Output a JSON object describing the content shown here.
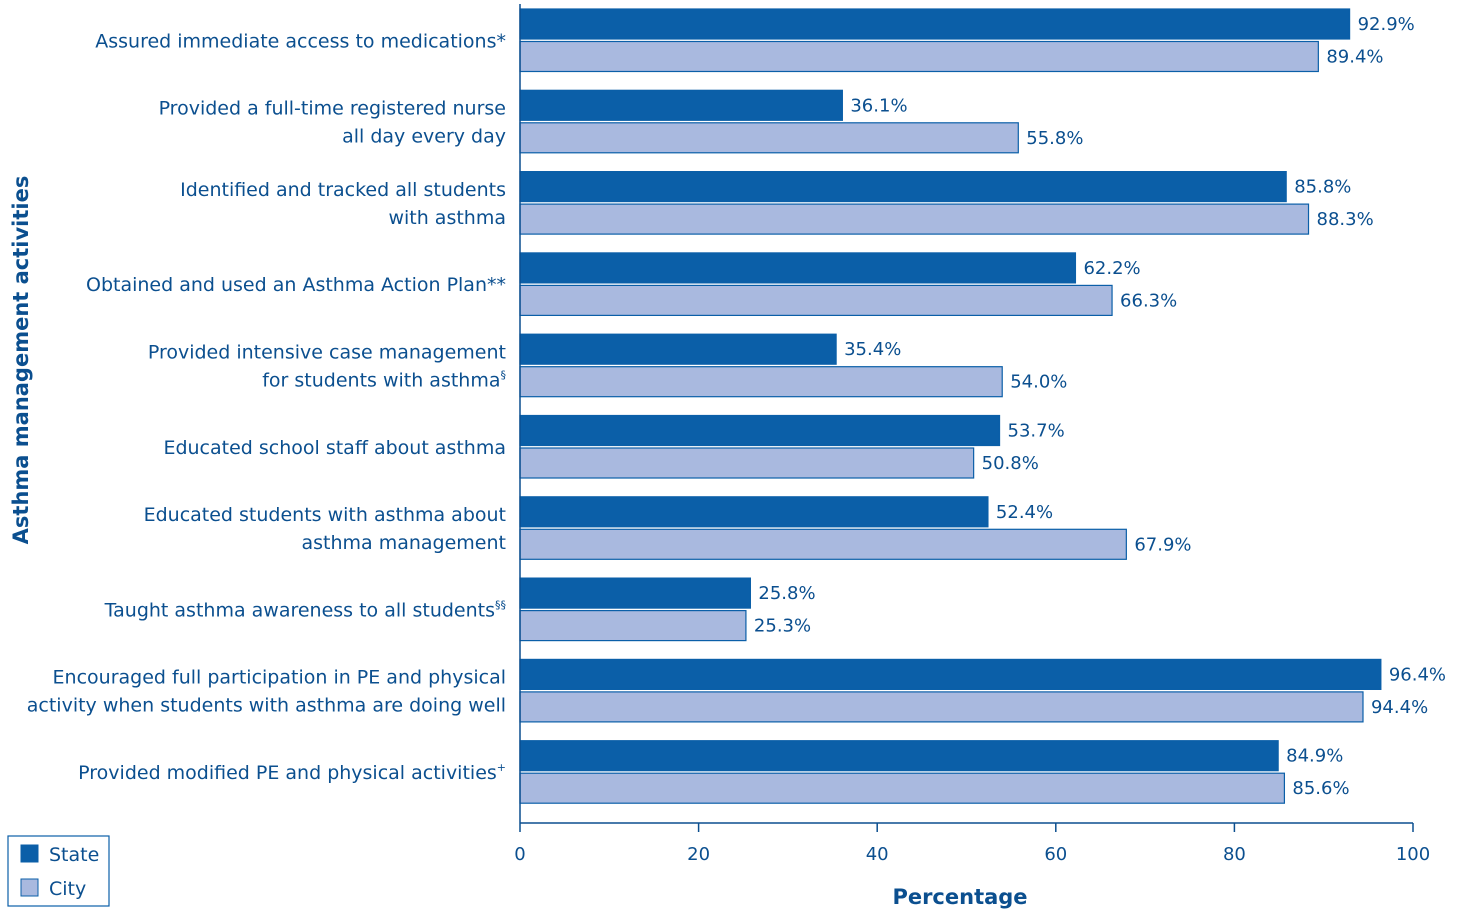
{
  "chart_data": {
    "type": "bar",
    "orientation": "horizontal",
    "title": "",
    "xlabel": "Percentage",
    "ylabel": "Asthma management activities",
    "xlim": [
      0,
      100
    ],
    "xticks": [
      0,
      20,
      40,
      60,
      80,
      100
    ],
    "grid": false,
    "legend_position": "bottom-left",
    "categories": [
      {
        "lines": [
          "Assured immediate access to medications*"
        ],
        "sup": ""
      },
      {
        "lines": [
          "Provided a full-time registered nurse",
          "all day every day"
        ],
        "sup": ""
      },
      {
        "lines": [
          "Identified and tracked all students",
          "with asthma"
        ],
        "sup": ""
      },
      {
        "lines": [
          "Obtained and used an Asthma Action Plan**"
        ],
        "sup": ""
      },
      {
        "lines": [
          "Provided intensive case management",
          "for students with asthma"
        ],
        "sup": "§"
      },
      {
        "lines": [
          "Educated school staff about asthma"
        ],
        "sup": ""
      },
      {
        "lines": [
          "Educated students with asthma about",
          "asthma management"
        ],
        "sup": ""
      },
      {
        "lines": [
          "Taught asthma awareness to all students"
        ],
        "sup": "§§"
      },
      {
        "lines": [
          "Encouraged full participation in PE and physical",
          "activity when students with asthma are doing well"
        ],
        "sup": ""
      },
      {
        "lines": [
          "Provided modified PE and physical activities"
        ],
        "sup": "+"
      }
    ],
    "series": [
      {
        "name": "State",
        "color": "#0b5fa8",
        "values": [
          92.9,
          36.1,
          85.8,
          62.2,
          35.4,
          53.7,
          52.4,
          25.8,
          96.4,
          84.9
        ],
        "labels": [
          "92.9%",
          "36.1%",
          "85.8%",
          "62.2%",
          "35.4%",
          "53.7%",
          "52.4%",
          "25.8%",
          "96.4%",
          "84.9%"
        ]
      },
      {
        "name": "City",
        "color": "#a9b9df",
        "values": [
          89.4,
          55.8,
          88.3,
          66.3,
          54.0,
          50.8,
          67.9,
          25.3,
          94.4,
          85.6
        ],
        "labels": [
          "89.4%",
          "55.8%",
          "88.3%",
          "66.3%",
          "54.0%",
          "50.8%",
          "67.9%",
          "25.3%",
          "94.4%",
          "85.6%"
        ]
      }
    ]
  }
}
